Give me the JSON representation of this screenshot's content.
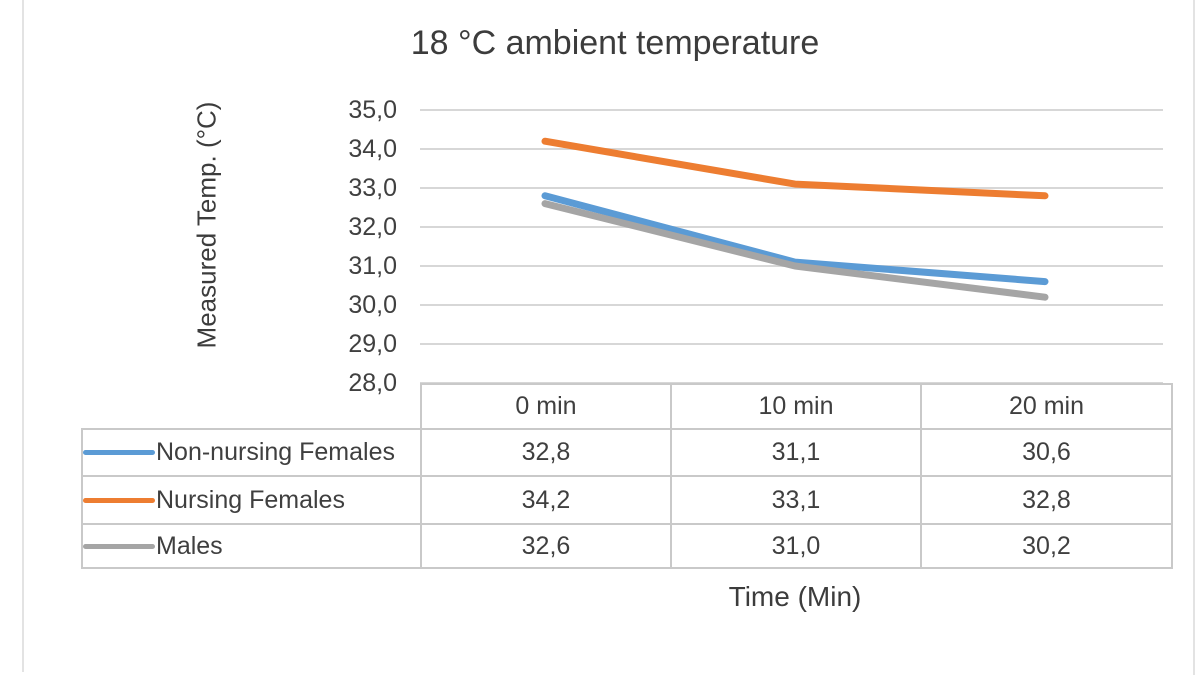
{
  "title": "18 °C ambient temperature",
  "y_axis_title": "Measured Temp. (°C)",
  "x_axis_title": "Time (Min)",
  "colors": {
    "series_blue": "#5B9BD5",
    "series_orange": "#ED7D31",
    "series_gray": "#A5A5A5",
    "gridline": "#d7d7d7",
    "table_border": "#c9c9c9",
    "text": "#3f3f3f"
  },
  "chart_data": {
    "type": "line",
    "title": "18 °C ambient temperature",
    "xlabel": "Time (Min)",
    "ylabel": "Measured Temp. (°C)",
    "categories": [
      "0 min",
      "10 min",
      "20 min"
    ],
    "series": [
      {
        "name": "Non-nursing Females",
        "color": "#5B9BD5",
        "values": [
          32.8,
          31.1,
          30.6
        ]
      },
      {
        "name": "Nursing Females",
        "color": "#ED7D31",
        "values": [
          34.2,
          33.1,
          32.8
        ]
      },
      {
        "name": "Males",
        "color": "#A5A5A5",
        "values": [
          32.6,
          31.0,
          30.2
        ]
      }
    ],
    "ylim": [
      28.0,
      35.0
    ],
    "y_ticks": [
      "35,0",
      "34,0",
      "33,0",
      "32,0",
      "31,0",
      "30,0",
      "29,0",
      "28,0"
    ],
    "grid": true,
    "legend_position": "data-table-left",
    "data_table": {
      "headers": [
        "0 min",
        "10 min",
        "20 min"
      ],
      "rows": [
        {
          "label": "Non-nursing Females",
          "values": [
            "32,8",
            "31,1",
            "30,6"
          ]
        },
        {
          "label": "Nursing Females",
          "values": [
            "34,2",
            "33,1",
            "32,8"
          ]
        },
        {
          "label": "Males",
          "values": [
            "32,6",
            "31,0",
            "30,2"
          ]
        }
      ]
    }
  }
}
